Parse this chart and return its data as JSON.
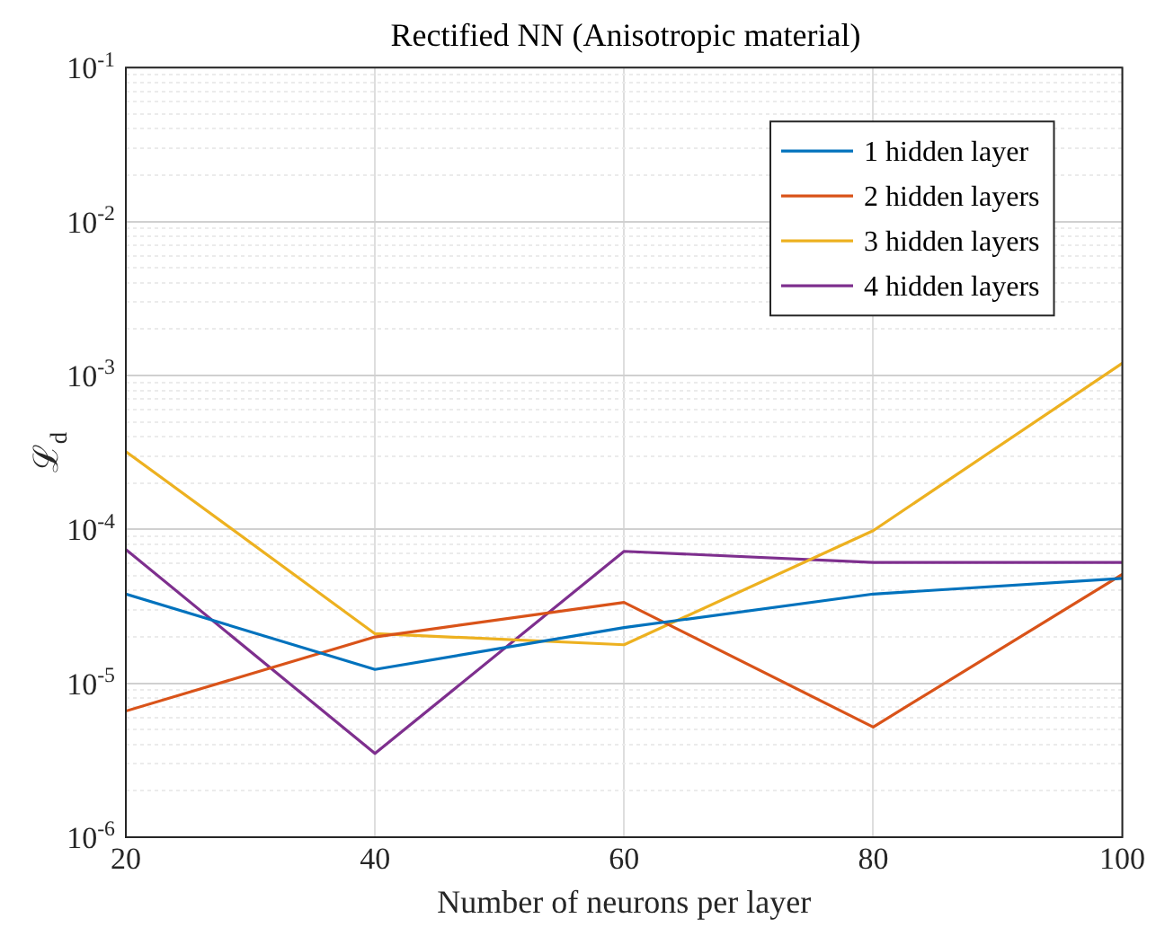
{
  "chart_data": {
    "type": "line",
    "title": "Rectified NN (Anisotropic material)",
    "xlabel": "Number of neurons per layer",
    "ylabel": "ℒ$_{d}$",
    "x": [
      20,
      40,
      60,
      80,
      100
    ],
    "series": [
      {
        "name": "1 hidden layer",
        "color": "#0072bd",
        "values": [
          3.8e-05,
          1.23e-05,
          2.3e-05,
          3.8e-05,
          4.8e-05
        ]
      },
      {
        "name": "2 hidden layers",
        "color": "#d95319",
        "values": [
          6.6e-06,
          2e-05,
          3.35e-05,
          5.2e-06,
          5.1e-05
        ]
      },
      {
        "name": "3 hidden layers",
        "color": "#edb120",
        "values": [
          0.00032,
          2.1e-05,
          1.78e-05,
          9.8e-05,
          0.0012
        ]
      },
      {
        "name": "4 hidden layers",
        "color": "#7e2f8e",
        "values": [
          7.4e-05,
          3.5e-06,
          7.2e-05,
          6.1e-05,
          6.1e-05
        ]
      }
    ],
    "log": "y",
    "xlim": [
      20,
      100
    ],
    "xticks": [
      20,
      40,
      60,
      80,
      100
    ],
    "ylim": [
      1e-06,
      0.1
    ],
    "yticks": [
      {
        "value": 1e-06,
        "label": "10$^{-6}$"
      },
      {
        "value": 1e-05,
        "label": "10$^{-5}$"
      },
      {
        "value": 0.0001,
        "label": "10$^{-4}$"
      },
      {
        "value": 0.001,
        "label": "10$^{-3}$"
      },
      {
        "value": 0.01,
        "label": "10$^{-2}$"
      },
      {
        "value": 0.1,
        "label": "10$^{-1}$"
      }
    ],
    "grid": true,
    "legend": "top right"
  }
}
